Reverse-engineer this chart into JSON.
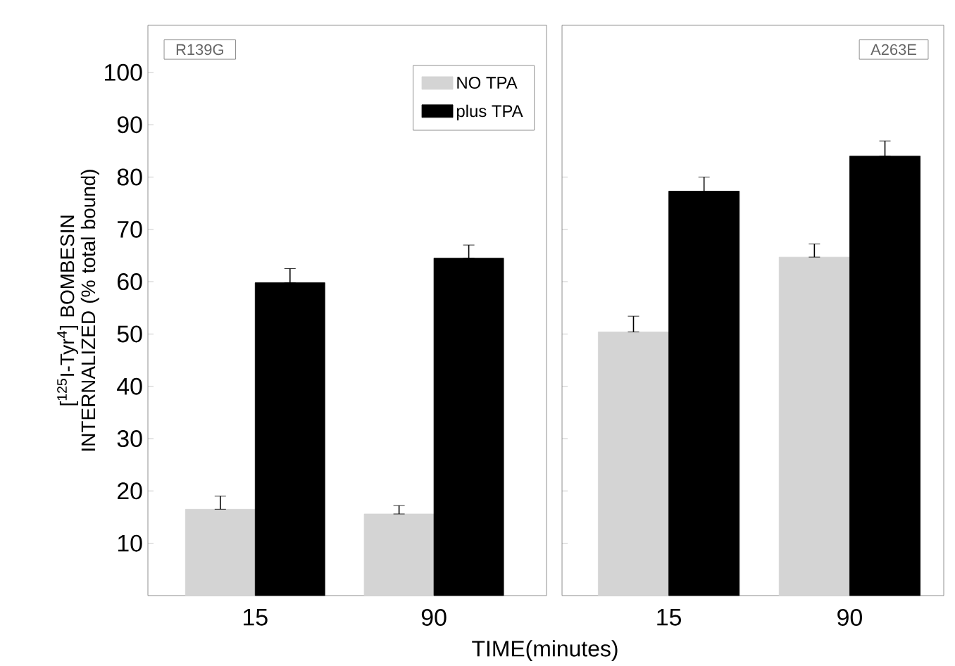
{
  "chart_data": [
    {
      "type": "bar",
      "categories": [
        "15",
        "90"
      ],
      "xlabel": "TIME(minutes)",
      "ylabel": "[$^{125}$I-Tyr$^{4}$] BOMBESIN INTERNALIZED (% total bound)",
      "ylim": [
        0,
        109
      ],
      "yticks": [
        10,
        20,
        30,
        40,
        50,
        60,
        70,
        80,
        90,
        100
      ],
      "legend": "top right",
      "annotations": [
        "R139G"
      ],
      "series": [
        {
          "name": "NO TPA",
          "color": "#d4d4d4",
          "values": [
            16.5,
            15.6
          ],
          "errors": [
            [
              16.5,
              19
            ],
            [
              15.6,
              17.2
            ]
          ]
        },
        {
          "name": "plus TPA",
          "color": "#000000",
          "values": [
            59.8,
            64.5
          ],
          "errors": [
            [
              59.8,
              62.5
            ],
            [
              64.5,
              67
            ]
          ]
        }
      ]
    },
    {
      "type": "bar",
      "categories": [
        "15",
        "90"
      ],
      "ylim": [
        0,
        109
      ],
      "tick_labels": "x",
      "yticks": [
        {
          "value": 10,
          "label": null
        },
        {
          "value": 20,
          "label": null
        },
        {
          "value": 30,
          "label": null
        },
        {
          "value": 40,
          "label": null
        },
        {
          "value": 50,
          "label": null
        },
        {
          "value": 60,
          "label": null
        },
        {
          "value": 70,
          "label": null
        },
        {
          "value": 80,
          "label": null
        }
      ],
      "annotations": [
        "A263E"
      ],
      "series": [
        {
          "color": "#d4d4d4",
          "values": [
            50.4,
            64.7
          ],
          "errors": [
            [
              50.4,
              53.4
            ],
            [
              64.7,
              67.2
            ]
          ]
        },
        {
          "color": "#000000",
          "values": [
            77.3,
            84
          ],
          "errors": [
            [
              77.3,
              80
            ],
            [
              84,
              86.9
            ]
          ]
        }
      ]
    }
  ]
}
